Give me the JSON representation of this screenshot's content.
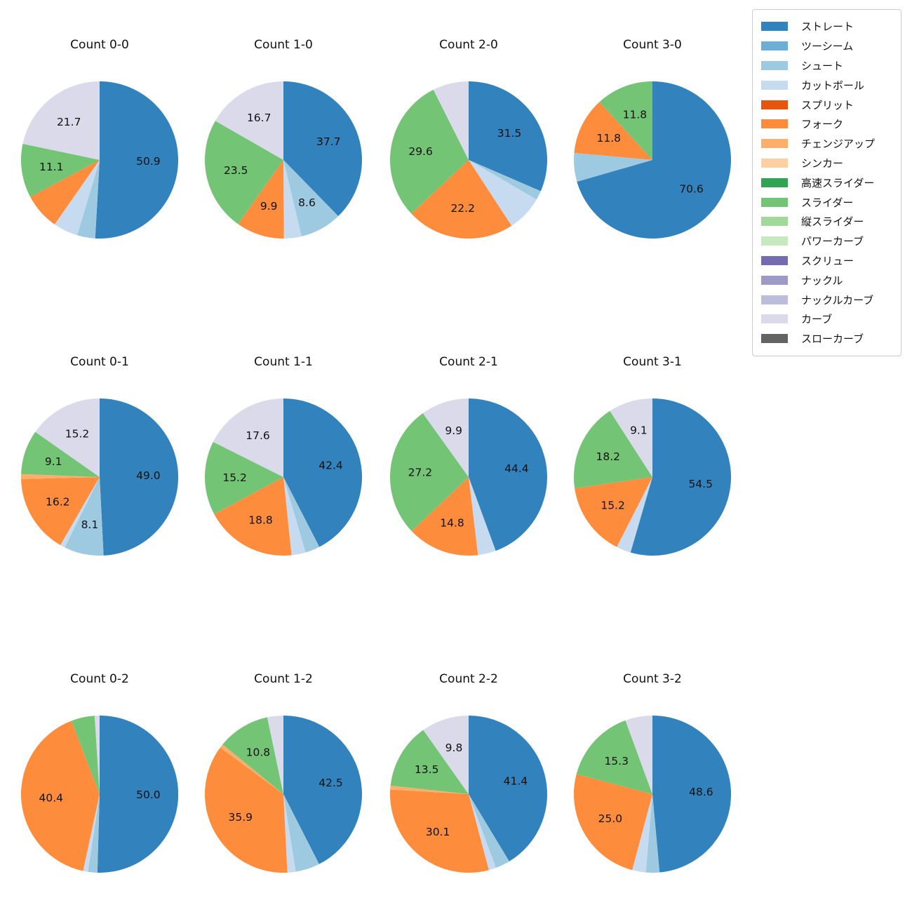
{
  "figure": {
    "background_color": "#ffffff",
    "text_color": "#111111",
    "grid_layout": "3 rows x 4 columns of pie charts",
    "legend_position": "top-right"
  },
  "legend": {
    "entries": [
      {
        "label": "ストレート",
        "color": "#3182bd"
      },
      {
        "label": "ツーシーム",
        "color": "#6baed6"
      },
      {
        "label": "シュート",
        "color": "#9ecae1"
      },
      {
        "label": "カットボール",
        "color": "#c6dbef"
      },
      {
        "label": "スプリット",
        "color": "#e6550d"
      },
      {
        "label": "フォーク",
        "color": "#fd8d3c"
      },
      {
        "label": "チェンジアップ",
        "color": "#fdae6b"
      },
      {
        "label": "シンカー",
        "color": "#fdd0a2"
      },
      {
        "label": "高速スライダー",
        "color": "#31a354"
      },
      {
        "label": "スライダー",
        "color": "#74c476"
      },
      {
        "label": "縦スライダー",
        "color": "#a1d99b"
      },
      {
        "label": "パワーカーブ",
        "color": "#c7e9c0"
      },
      {
        "label": "スクリュー",
        "color": "#756bb1"
      },
      {
        "label": "ナックル",
        "color": "#9e9ac8"
      },
      {
        "label": "ナックルカーブ",
        "color": "#bcbddc"
      },
      {
        "label": "カーブ",
        "color": "#dadaeb"
      },
      {
        "label": "スローカーブ",
        "color": "#636363"
      }
    ]
  },
  "chart_data": [
    {
      "type": "pie",
      "title": "Count 0-0",
      "start_angle": "top",
      "direction": "clockwise",
      "slices": [
        {
          "name": "ストレート",
          "value": 50.9,
          "label": "50.9"
        },
        {
          "name": "シュート",
          "value": 3.7,
          "label": null
        },
        {
          "name": "カットボール",
          "value": 5.1,
          "label": null
        },
        {
          "name": "フォーク",
          "value": 7.5,
          "label": null
        },
        {
          "name": "スライダー",
          "value": 11.1,
          "label": "11.1"
        },
        {
          "name": "カーブ",
          "value": 21.7,
          "label": "21.7"
        }
      ]
    },
    {
      "type": "pie",
      "title": "Count 1-0",
      "start_angle": "top",
      "direction": "clockwise",
      "slices": [
        {
          "name": "ストレート",
          "value": 37.7,
          "label": "37.7"
        },
        {
          "name": "シュート",
          "value": 8.6,
          "label": "8.6"
        },
        {
          "name": "カットボール",
          "value": 3.6,
          "label": null
        },
        {
          "name": "フォーク",
          "value": 9.9,
          "label": "9.9"
        },
        {
          "name": "スライダー",
          "value": 23.5,
          "label": "23.5"
        },
        {
          "name": "カーブ",
          "value": 16.7,
          "label": "16.7"
        }
      ]
    },
    {
      "type": "pie",
      "title": "Count 2-0",
      "start_angle": "top",
      "direction": "clockwise",
      "slices": [
        {
          "name": "ストレート",
          "value": 31.5,
          "label": "31.5"
        },
        {
          "name": "シュート",
          "value": 1.9,
          "label": null
        },
        {
          "name": "カットボール",
          "value": 7.4,
          "label": null
        },
        {
          "name": "フォーク",
          "value": 22.2,
          "label": "22.2"
        },
        {
          "name": "スライダー",
          "value": 29.6,
          "label": "29.6"
        },
        {
          "name": "カーブ",
          "value": 7.4,
          "label": null
        }
      ]
    },
    {
      "type": "pie",
      "title": "Count 3-0",
      "start_angle": "top",
      "direction": "clockwise",
      "slices": [
        {
          "name": "ストレート",
          "value": 70.6,
          "label": "70.6"
        },
        {
          "name": "シュート",
          "value": 5.9,
          "label": null
        },
        {
          "name": "フォーク",
          "value": 11.8,
          "label": "11.8"
        },
        {
          "name": "スライダー",
          "value": 11.8,
          "label": "11.8"
        }
      ]
    },
    {
      "type": "pie",
      "title": "Count 0-1",
      "start_angle": "top",
      "direction": "clockwise",
      "slices": [
        {
          "name": "ストレート",
          "value": 49.0,
          "label": "49.0"
        },
        {
          "name": "シュート",
          "value": 8.1,
          "label": "8.1"
        },
        {
          "name": "カットボール",
          "value": 1.0,
          "label": null
        },
        {
          "name": "フォーク",
          "value": 16.2,
          "label": "16.2"
        },
        {
          "name": "チェンジアップ",
          "value": 1.0,
          "label": null
        },
        {
          "name": "スライダー",
          "value": 9.1,
          "label": "9.1"
        },
        {
          "name": "カーブ",
          "value": 15.2,
          "label": "15.2"
        }
      ]
    },
    {
      "type": "pie",
      "title": "Count 1-1",
      "start_angle": "top",
      "direction": "clockwise",
      "slices": [
        {
          "name": "ストレート",
          "value": 42.4,
          "label": "42.4"
        },
        {
          "name": "シュート",
          "value": 3.0,
          "label": null
        },
        {
          "name": "カットボール",
          "value": 2.9,
          "label": null
        },
        {
          "name": "フォーク",
          "value": 18.8,
          "label": "18.8"
        },
        {
          "name": "スライダー",
          "value": 15.2,
          "label": "15.2"
        },
        {
          "name": "カーブ",
          "value": 17.6,
          "label": "17.6"
        }
      ]
    },
    {
      "type": "pie",
      "title": "Count 2-1",
      "start_angle": "top",
      "direction": "clockwise",
      "slices": [
        {
          "name": "ストレート",
          "value": 44.4,
          "label": "44.4"
        },
        {
          "name": "カットボール",
          "value": 3.7,
          "label": null
        },
        {
          "name": "フォーク",
          "value": 14.8,
          "label": "14.8"
        },
        {
          "name": "スライダー",
          "value": 27.2,
          "label": "27.2"
        },
        {
          "name": "カーブ",
          "value": 9.9,
          "label": "9.9"
        }
      ]
    },
    {
      "type": "pie",
      "title": "Count 3-1",
      "start_angle": "top",
      "direction": "clockwise",
      "slices": [
        {
          "name": "ストレート",
          "value": 54.5,
          "label": "54.5"
        },
        {
          "name": "カットボール",
          "value": 3.0,
          "label": null
        },
        {
          "name": "フォーク",
          "value": 15.2,
          "label": "15.2"
        },
        {
          "name": "スライダー",
          "value": 18.2,
          "label": "18.2"
        },
        {
          "name": "カーブ",
          "value": 9.1,
          "label": "9.1"
        }
      ]
    },
    {
      "type": "pie",
      "title": "Count 0-2",
      "start_angle": "top",
      "direction": "clockwise",
      "slices": [
        {
          "name": "ストレート",
          "value": 50.0,
          "label": "50.0"
        },
        {
          "name": "シュート",
          "value": 1.9,
          "label": null
        },
        {
          "name": "カットボール",
          "value": 1.0,
          "label": null
        },
        {
          "name": "フォーク",
          "value": 40.4,
          "label": "40.4"
        },
        {
          "name": "スライダー",
          "value": 4.8,
          "label": null
        },
        {
          "name": "カーブ",
          "value": 1.0,
          "label": null
        }
      ]
    },
    {
      "type": "pie",
      "title": "Count 1-2",
      "start_angle": "top",
      "direction": "clockwise",
      "slices": [
        {
          "name": "ストレート",
          "value": 42.5,
          "label": "42.5"
        },
        {
          "name": "シュート",
          "value": 5.0,
          "label": null
        },
        {
          "name": "カットボール",
          "value": 1.7,
          "label": null
        },
        {
          "name": "フォーク",
          "value": 35.9,
          "label": "35.9"
        },
        {
          "name": "チェンジアップ",
          "value": 0.8,
          "label": null
        },
        {
          "name": "スライダー",
          "value": 10.8,
          "label": "10.8"
        },
        {
          "name": "カーブ",
          "value": 3.3,
          "label": null
        }
      ]
    },
    {
      "type": "pie",
      "title": "Count 2-2",
      "start_angle": "top",
      "direction": "clockwise",
      "slices": [
        {
          "name": "ストレート",
          "value": 41.4,
          "label": "41.4"
        },
        {
          "name": "シュート",
          "value": 3.0,
          "label": null
        },
        {
          "name": "カットボール",
          "value": 1.5,
          "label": null
        },
        {
          "name": "フォーク",
          "value": 30.1,
          "label": "30.1"
        },
        {
          "name": "チェンジアップ",
          "value": 0.8,
          "label": null
        },
        {
          "name": "スライダー",
          "value": 13.5,
          "label": "13.5"
        },
        {
          "name": "カーブ",
          "value": 9.8,
          "label": "9.8"
        }
      ]
    },
    {
      "type": "pie",
      "title": "Count 3-2",
      "start_angle": "top",
      "direction": "clockwise",
      "slices": [
        {
          "name": "ストレート",
          "value": 48.6,
          "label": "48.6"
        },
        {
          "name": "シュート",
          "value": 2.8,
          "label": null
        },
        {
          "name": "カットボール",
          "value": 2.8,
          "label": null
        },
        {
          "name": "フォーク",
          "value": 25.0,
          "label": "25.0"
        },
        {
          "name": "スライダー",
          "value": 15.3,
          "label": "15.3"
        },
        {
          "name": "カーブ",
          "value": 5.6,
          "label": null
        }
      ]
    }
  ]
}
